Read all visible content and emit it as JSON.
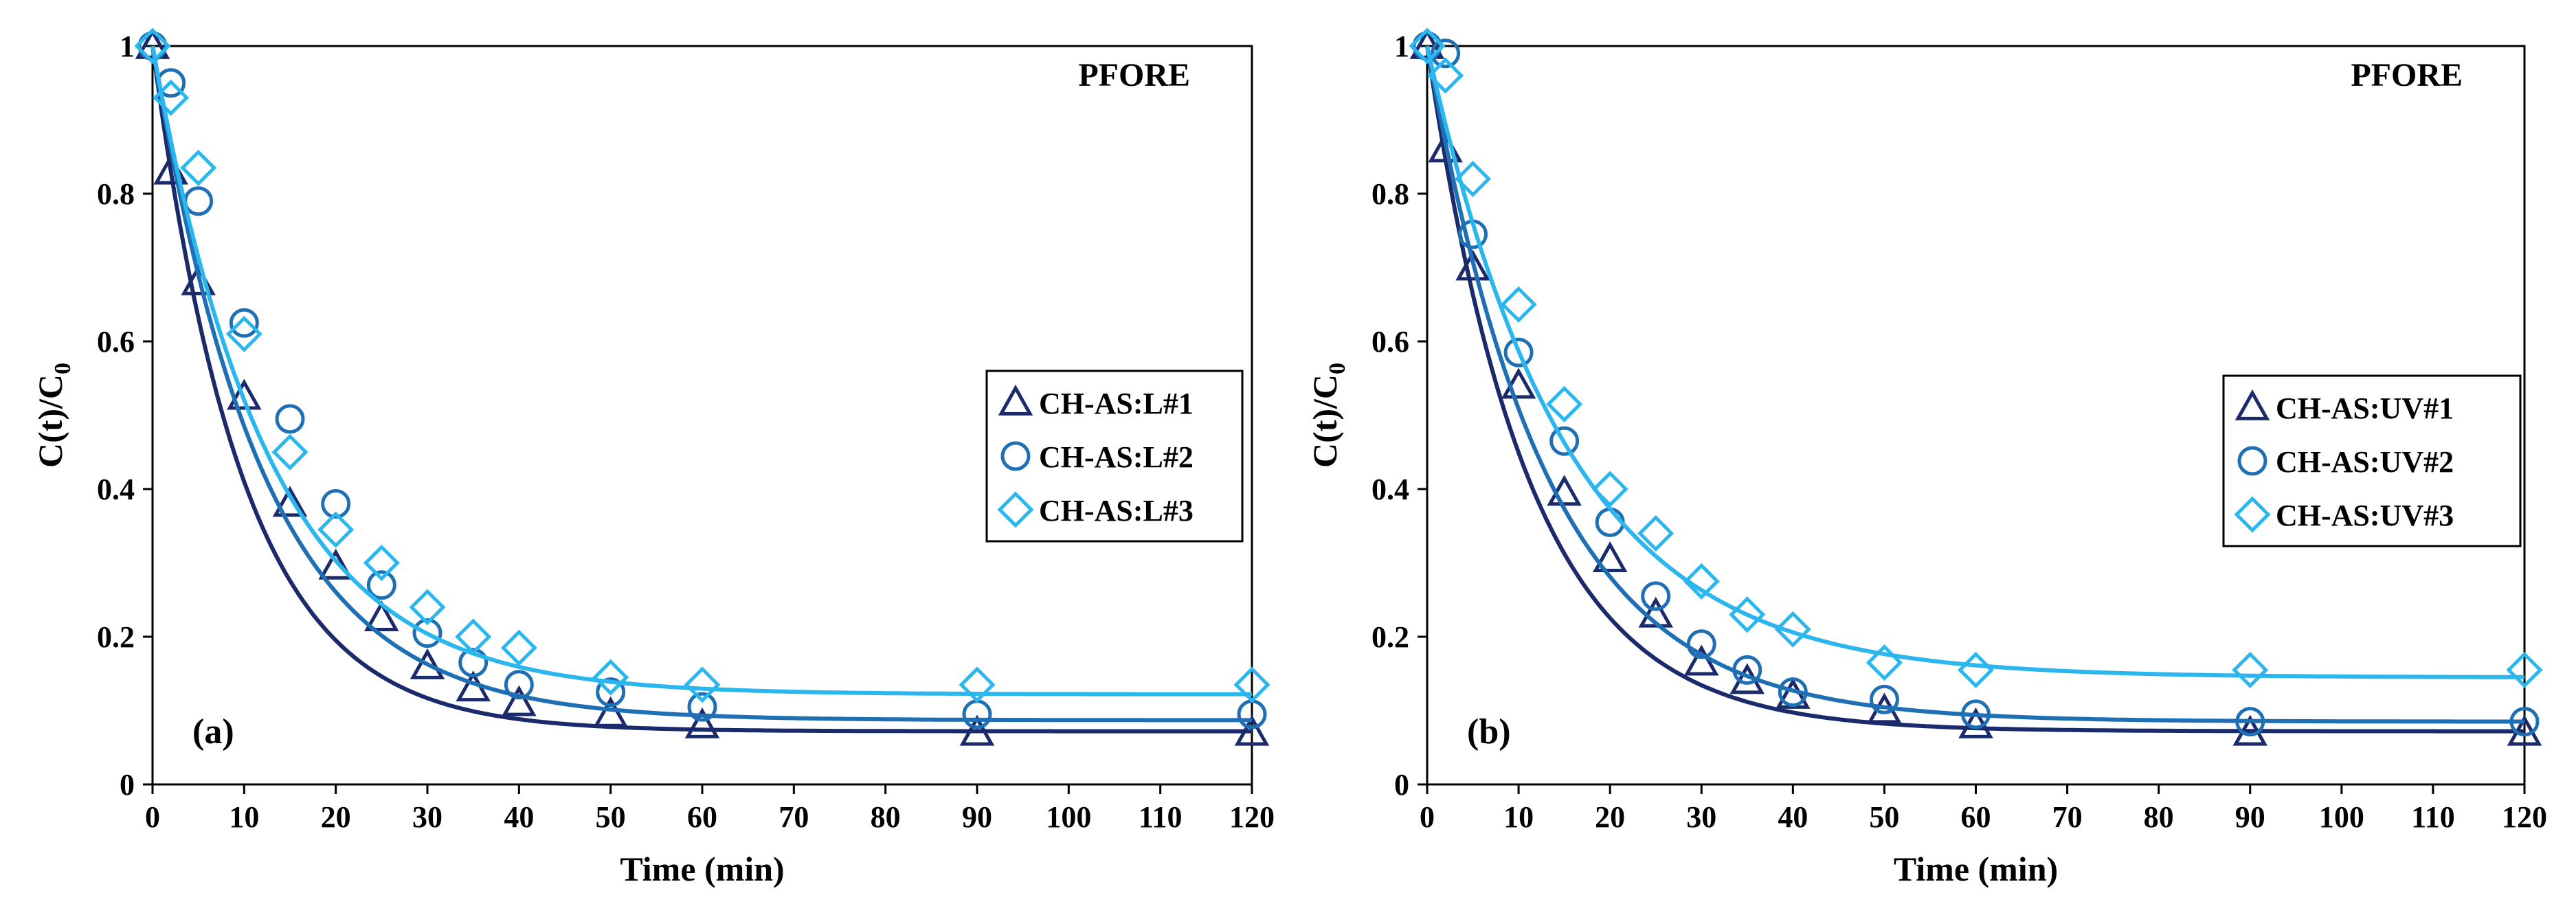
{
  "colors": {
    "series1": "#1b2a6b",
    "series2": "#1f6fb5",
    "series3": "#2bb6ee",
    "axis": "#000000"
  },
  "chart_data": [
    {
      "type": "scatter",
      "panel_label": "(a)",
      "annotation": "PFORE",
      "xlabel": "Time (min)",
      "ylabel": "C(t)/C0",
      "xlim": [
        0,
        120
      ],
      "ylim": [
        0,
        1
      ],
      "xticks": [
        "0",
        "10",
        "20",
        "30",
        "40",
        "50",
        "60",
        "70",
        "80",
        "90",
        "100",
        "110",
        "120"
      ],
      "yticks": [
        "0",
        "0.2",
        "0.4",
        "0.6",
        "0.8",
        "1"
      ],
      "legend_position": "middle-right",
      "series": [
        {
          "name": "CH-AS:L#1",
          "marker": "triangle",
          "x": [
            0,
            2,
            5,
            10,
            15,
            20,
            25,
            30,
            35,
            40,
            50,
            60,
            90,
            120
          ],
          "y": [
            1.0,
            0.83,
            0.68,
            0.525,
            0.38,
            0.295,
            0.225,
            0.16,
            0.13,
            0.11,
            0.095,
            0.08,
            0.07,
            0.07
          ],
          "fit": {
            "k": 0.101,
            "c_inf": 0.072
          }
        },
        {
          "name": "CH-AS:L#2",
          "marker": "circle",
          "x": [
            0,
            2,
            5,
            10,
            15,
            20,
            25,
            30,
            35,
            40,
            50,
            60,
            90,
            120
          ],
          "y": [
            1.0,
            0.95,
            0.79,
            0.625,
            0.495,
            0.38,
            0.27,
            0.205,
            0.165,
            0.135,
            0.125,
            0.105,
            0.095,
            0.095
          ],
          "fit": {
            "k": 0.083,
            "c_inf": 0.087
          }
        },
        {
          "name": "CH-AS:L#3",
          "marker": "diamond",
          "x": [
            0,
            2,
            5,
            10,
            15,
            20,
            25,
            30,
            35,
            40,
            50,
            60,
            90,
            120
          ],
          "y": [
            1.0,
            0.93,
            0.835,
            0.61,
            0.45,
            0.345,
            0.3,
            0.24,
            0.2,
            0.185,
            0.145,
            0.135,
            0.135,
            0.135
          ],
          "fit": {
            "k": 0.079,
            "c_inf": 0.122
          }
        }
      ]
    },
    {
      "type": "scatter",
      "panel_label": "(b)",
      "annotation": "PFORE",
      "xlabel": "Time (min)",
      "ylabel": "C(t)/C0",
      "xlim": [
        0,
        120
      ],
      "ylim": [
        0,
        1
      ],
      "xticks": [
        "0",
        "10",
        "20",
        "30",
        "40",
        "50",
        "60",
        "70",
        "80",
        "90",
        "100",
        "110",
        "120"
      ],
      "yticks": [
        "0",
        "0.2",
        "0.4",
        "0.6",
        "0.8",
        "1"
      ],
      "legend_position": "middle-right",
      "series": [
        {
          "name": "CH-AS:UV#1",
          "marker": "triangle",
          "x": [
            0,
            2,
            5,
            10,
            15,
            20,
            25,
            30,
            35,
            40,
            50,
            60,
            90,
            120
          ],
          "y": [
            1.0,
            0.86,
            0.7,
            0.54,
            0.395,
            0.305,
            0.23,
            0.165,
            0.14,
            0.12,
            0.1,
            0.08,
            0.07,
            0.07
          ],
          "fit": {
            "k": 0.09,
            "c_inf": 0.072
          }
        },
        {
          "name": "CH-AS:UV#2",
          "marker": "circle",
          "x": [
            0,
            2,
            5,
            10,
            15,
            20,
            25,
            30,
            35,
            40,
            50,
            60,
            90,
            120
          ],
          "y": [
            1.0,
            0.99,
            0.745,
            0.585,
            0.465,
            0.355,
            0.255,
            0.19,
            0.155,
            0.125,
            0.115,
            0.095,
            0.085,
            0.085
          ],
          "fit": {
            "k": 0.077,
            "c_inf": 0.085
          }
        },
        {
          "name": "CH-AS:UV#3",
          "marker": "diamond",
          "x": [
            0,
            2,
            5,
            10,
            15,
            20,
            25,
            30,
            35,
            40,
            50,
            60,
            90,
            120
          ],
          "y": [
            1.0,
            0.96,
            0.82,
            0.65,
            0.515,
            0.4,
            0.34,
            0.275,
            0.23,
            0.21,
            0.165,
            0.155,
            0.155,
            0.155
          ],
          "fit": {
            "k": 0.066,
            "c_inf": 0.145
          }
        }
      ]
    }
  ]
}
